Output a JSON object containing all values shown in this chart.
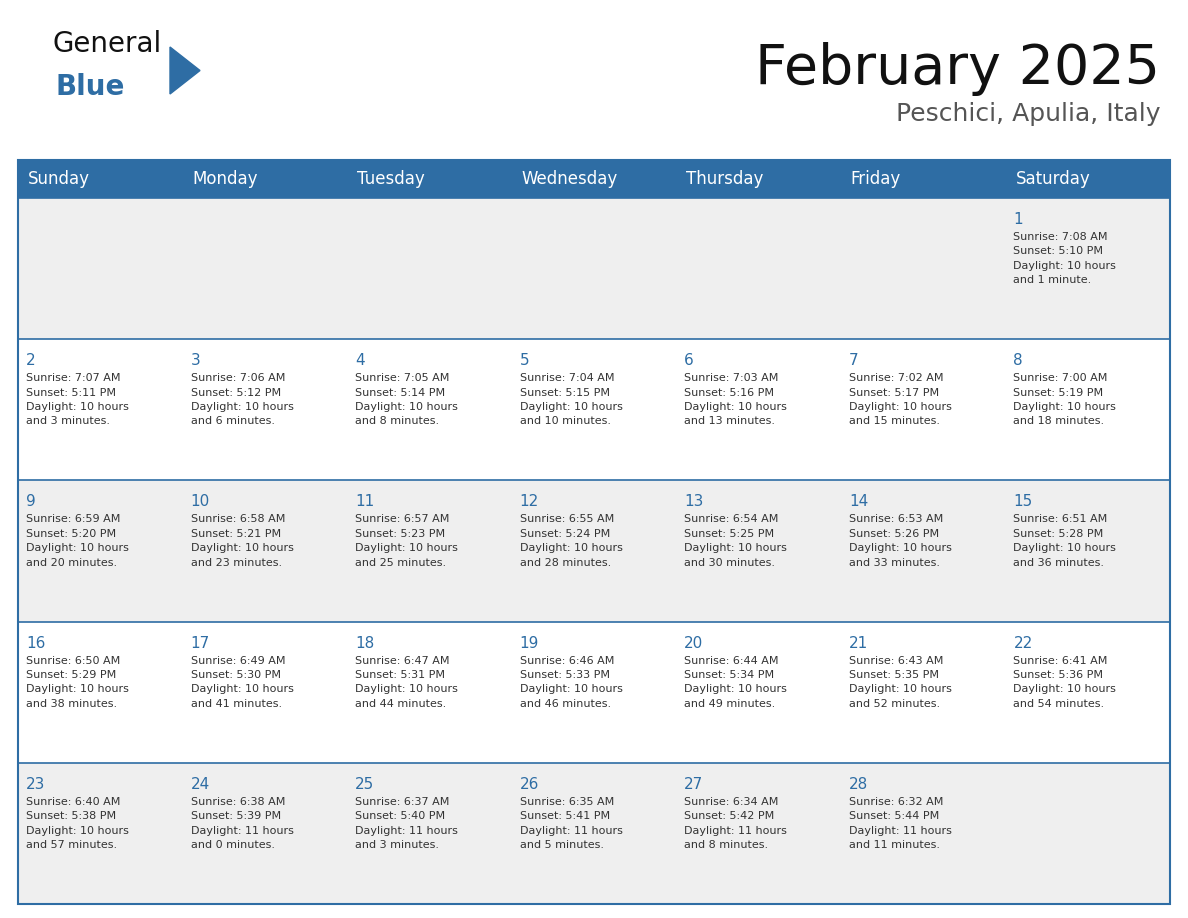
{
  "title": "February 2025",
  "subtitle": "Peschici, Apulia, Italy",
  "header_bg": "#2E6DA4",
  "header_text_color": "#FFFFFF",
  "cell_bg_odd": "#EFEFEF",
  "cell_bg_even": "#FFFFFF",
  "day_number_color": "#2E6DA4",
  "info_text_color": "#333333",
  "border_color": "#2E6DA4",
  "days_of_week": [
    "Sunday",
    "Monday",
    "Tuesday",
    "Wednesday",
    "Thursday",
    "Friday",
    "Saturday"
  ],
  "weeks": [
    [
      {
        "day": "",
        "info": ""
      },
      {
        "day": "",
        "info": ""
      },
      {
        "day": "",
        "info": ""
      },
      {
        "day": "",
        "info": ""
      },
      {
        "day": "",
        "info": ""
      },
      {
        "day": "",
        "info": ""
      },
      {
        "day": "1",
        "info": "Sunrise: 7:08 AM\nSunset: 5:10 PM\nDaylight: 10 hours\nand 1 minute."
      }
    ],
    [
      {
        "day": "2",
        "info": "Sunrise: 7:07 AM\nSunset: 5:11 PM\nDaylight: 10 hours\nand 3 minutes."
      },
      {
        "day": "3",
        "info": "Sunrise: 7:06 AM\nSunset: 5:12 PM\nDaylight: 10 hours\nand 6 minutes."
      },
      {
        "day": "4",
        "info": "Sunrise: 7:05 AM\nSunset: 5:14 PM\nDaylight: 10 hours\nand 8 minutes."
      },
      {
        "day": "5",
        "info": "Sunrise: 7:04 AM\nSunset: 5:15 PM\nDaylight: 10 hours\nand 10 minutes."
      },
      {
        "day": "6",
        "info": "Sunrise: 7:03 AM\nSunset: 5:16 PM\nDaylight: 10 hours\nand 13 minutes."
      },
      {
        "day": "7",
        "info": "Sunrise: 7:02 AM\nSunset: 5:17 PM\nDaylight: 10 hours\nand 15 minutes."
      },
      {
        "day": "8",
        "info": "Sunrise: 7:00 AM\nSunset: 5:19 PM\nDaylight: 10 hours\nand 18 minutes."
      }
    ],
    [
      {
        "day": "9",
        "info": "Sunrise: 6:59 AM\nSunset: 5:20 PM\nDaylight: 10 hours\nand 20 minutes."
      },
      {
        "day": "10",
        "info": "Sunrise: 6:58 AM\nSunset: 5:21 PM\nDaylight: 10 hours\nand 23 minutes."
      },
      {
        "day": "11",
        "info": "Sunrise: 6:57 AM\nSunset: 5:23 PM\nDaylight: 10 hours\nand 25 minutes."
      },
      {
        "day": "12",
        "info": "Sunrise: 6:55 AM\nSunset: 5:24 PM\nDaylight: 10 hours\nand 28 minutes."
      },
      {
        "day": "13",
        "info": "Sunrise: 6:54 AM\nSunset: 5:25 PM\nDaylight: 10 hours\nand 30 minutes."
      },
      {
        "day": "14",
        "info": "Sunrise: 6:53 AM\nSunset: 5:26 PM\nDaylight: 10 hours\nand 33 minutes."
      },
      {
        "day": "15",
        "info": "Sunrise: 6:51 AM\nSunset: 5:28 PM\nDaylight: 10 hours\nand 36 minutes."
      }
    ],
    [
      {
        "day": "16",
        "info": "Sunrise: 6:50 AM\nSunset: 5:29 PM\nDaylight: 10 hours\nand 38 minutes."
      },
      {
        "day": "17",
        "info": "Sunrise: 6:49 AM\nSunset: 5:30 PM\nDaylight: 10 hours\nand 41 minutes."
      },
      {
        "day": "18",
        "info": "Sunrise: 6:47 AM\nSunset: 5:31 PM\nDaylight: 10 hours\nand 44 minutes."
      },
      {
        "day": "19",
        "info": "Sunrise: 6:46 AM\nSunset: 5:33 PM\nDaylight: 10 hours\nand 46 minutes."
      },
      {
        "day": "20",
        "info": "Sunrise: 6:44 AM\nSunset: 5:34 PM\nDaylight: 10 hours\nand 49 minutes."
      },
      {
        "day": "21",
        "info": "Sunrise: 6:43 AM\nSunset: 5:35 PM\nDaylight: 10 hours\nand 52 minutes."
      },
      {
        "day": "22",
        "info": "Sunrise: 6:41 AM\nSunset: 5:36 PM\nDaylight: 10 hours\nand 54 minutes."
      }
    ],
    [
      {
        "day": "23",
        "info": "Sunrise: 6:40 AM\nSunset: 5:38 PM\nDaylight: 10 hours\nand 57 minutes."
      },
      {
        "day": "24",
        "info": "Sunrise: 6:38 AM\nSunset: 5:39 PM\nDaylight: 11 hours\nand 0 minutes."
      },
      {
        "day": "25",
        "info": "Sunrise: 6:37 AM\nSunset: 5:40 PM\nDaylight: 11 hours\nand 3 minutes."
      },
      {
        "day": "26",
        "info": "Sunrise: 6:35 AM\nSunset: 5:41 PM\nDaylight: 11 hours\nand 5 minutes."
      },
      {
        "day": "27",
        "info": "Sunrise: 6:34 AM\nSunset: 5:42 PM\nDaylight: 11 hours\nand 8 minutes."
      },
      {
        "day": "28",
        "info": "Sunrise: 6:32 AM\nSunset: 5:44 PM\nDaylight: 11 hours\nand 11 minutes."
      },
      {
        "day": "",
        "info": ""
      }
    ]
  ],
  "logo_text_general": "General",
  "logo_text_blue": "Blue",
  "logo_triangle_color": "#2E6DA4",
  "logo_general_color": "#111111"
}
